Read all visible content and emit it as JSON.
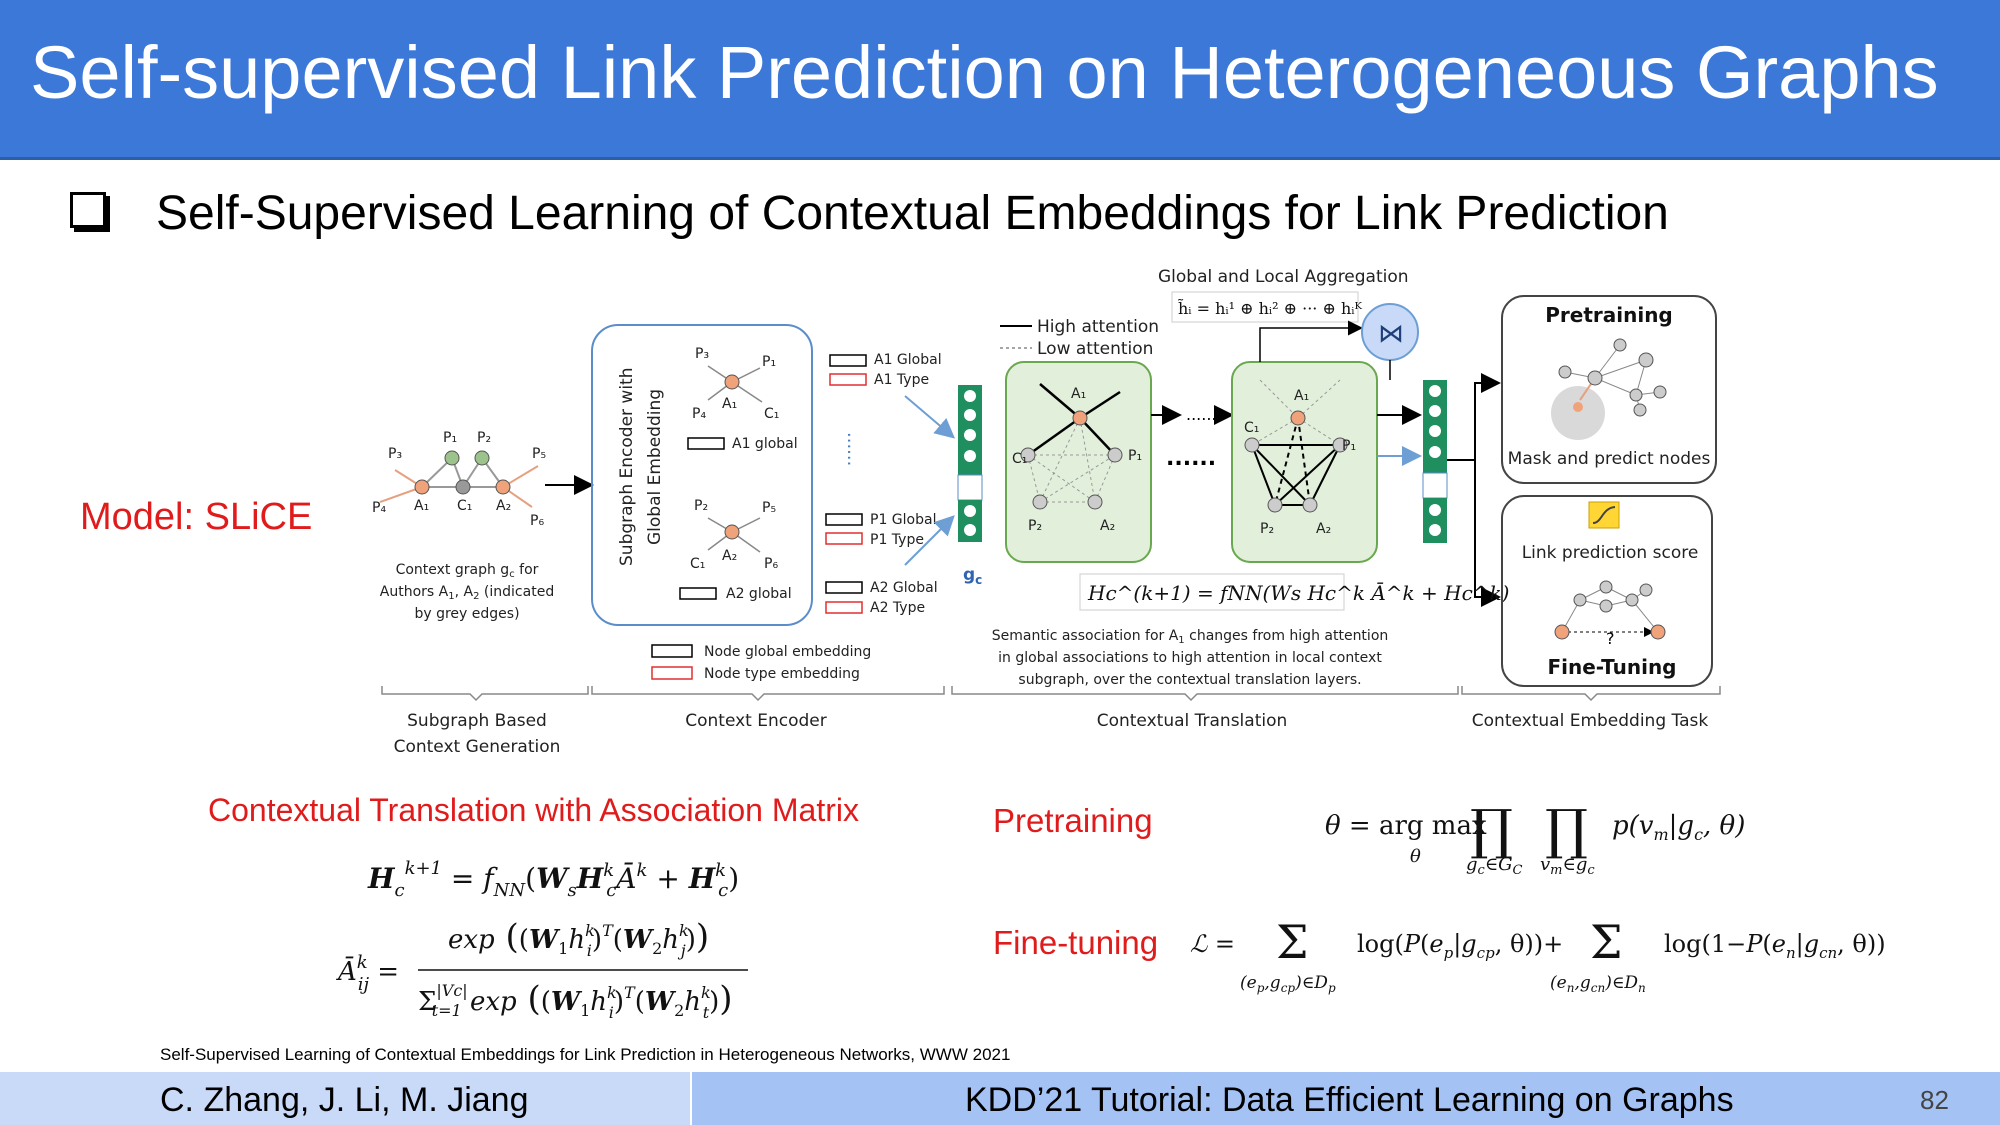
{
  "slide": {
    "title": "Self-supervised Link Prediction on Heterogeneous Graphs",
    "bullet": "Self-Supervised Learning of Contextual Embeddings for Link Prediction",
    "model_label": "Model: SLiCE",
    "reference": "Self-Supervised Learning of Contextual Embeddings for Link Prediction in Heterogeneous Networks, WWW 2021",
    "footer": {
      "authors": "C. Zhang, J. Li, M. Jiang",
      "event": "KDD’21 Tutorial: Data Efficient Learning on Graphs",
      "page": "82"
    }
  },
  "diagram": {
    "context_caption": [
      "Context graph g",
      "Authors A",
      ", A",
      " (indicated",
      "by grey edges)"
    ],
    "encoder_title": [
      "Subgraph Encoder with",
      "Global Embedding"
    ],
    "global_labels": [
      "A1 global",
      "A2 global"
    ],
    "right_labels": [
      "A1 Global",
      "A1 Type",
      "P1 Global",
      "P1 Type",
      "A2 Global",
      "A2 Type"
    ],
    "legend_embed": [
      "Node global embedding",
      "Node type embedding"
    ],
    "attention_legend": [
      "High attention",
      "Low attention"
    ],
    "aggregation_title": "Global and Local Aggregation",
    "aggregation_formula": "h̃ᵢ = hᵢ¹ ⊕ hᵢ² ⊕ ··· ⊕ hᵢᴷ",
    "translation_formula": "Hc^(k+1) = fNN(Ws Hc^k Ā^k + Hc^k)",
    "semantic_caption": [
      "Semantic association for A",
      " changes from high attention",
      "in global associations to high attention in local context",
      "subgraph, over the contextual translation layers."
    ],
    "gc_label": "g",
    "pretraining_title": "Pretraining",
    "mask_caption": "Mask and predict nodes",
    "link_score": "Link prediction score",
    "finetuning_title": "Fine-Tuning",
    "section_labels": [
      "Subgraph Based",
      "Context Generation",
      "Context Encoder",
      "Contextual Translation",
      "Contextual Embedding Task"
    ]
  },
  "formulas": {
    "ct_label": "Contextual Translation with Association Matrix",
    "pretraining_label": "Pretraining",
    "finetuning_label": "Fine-tuning"
  }
}
